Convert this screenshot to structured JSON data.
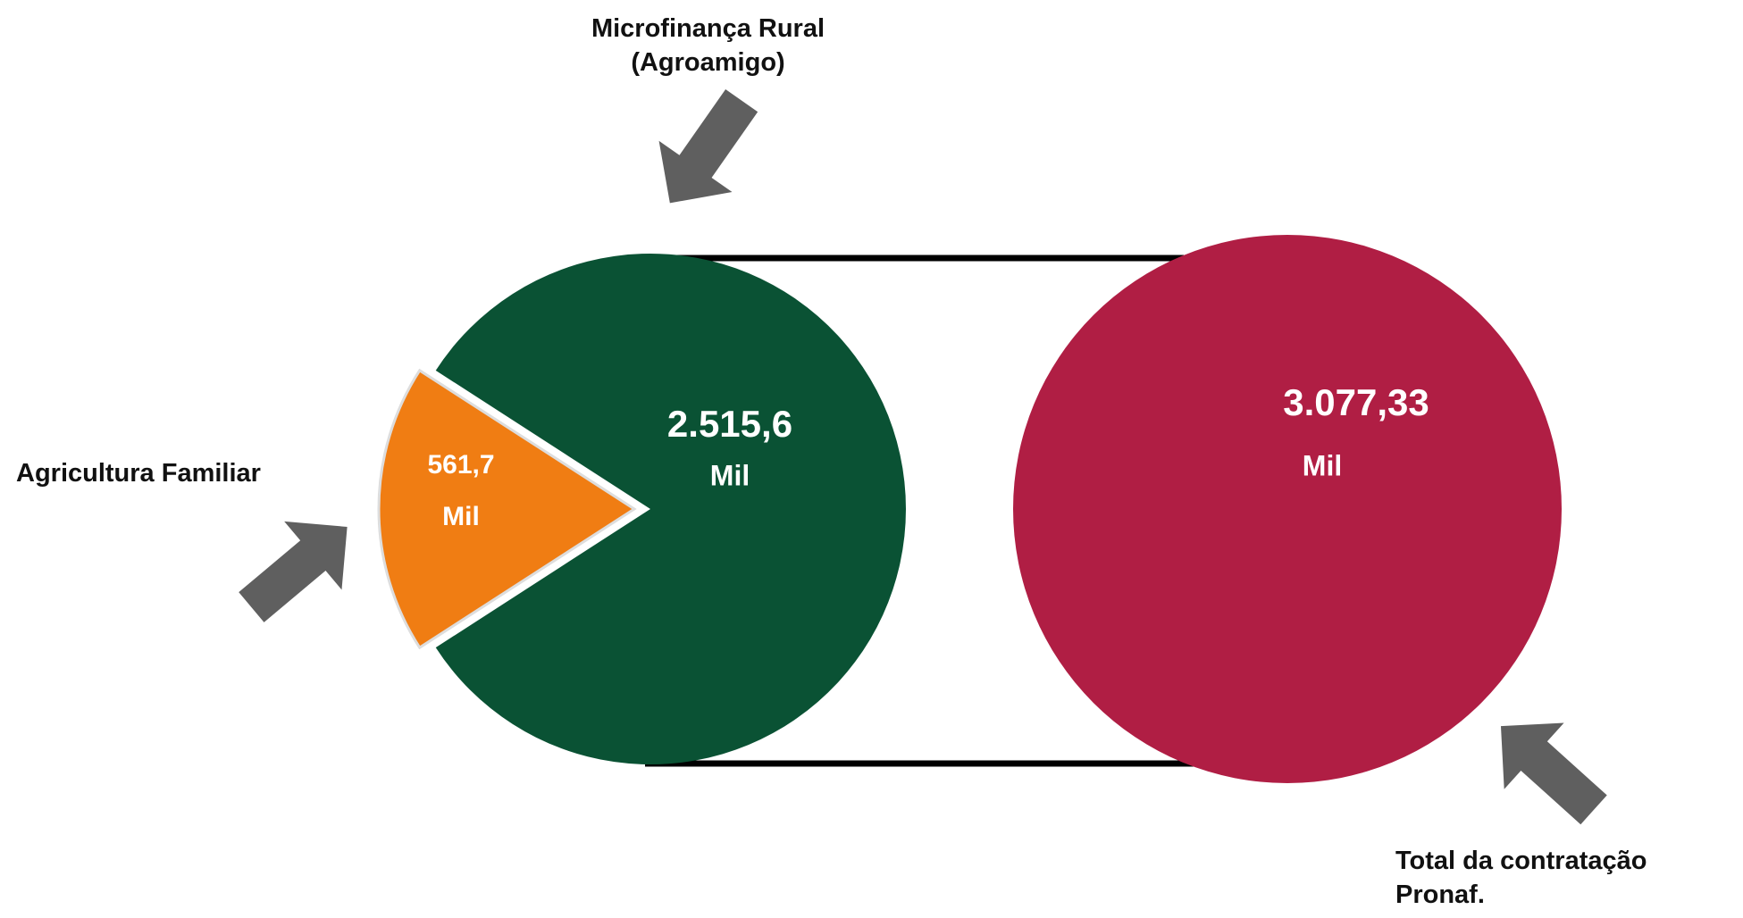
{
  "chart_data": {
    "type": "pie",
    "categories": [
      "Agricultura Familiar",
      "Microfinança Rural (Agroamigo)"
    ],
    "values": [
      561.7,
      2515.6
    ],
    "value_labels": [
      "561,7",
      "2.515,6"
    ],
    "colors": [
      "#f07d13",
      "#0a5234"
    ],
    "unit": "Mil",
    "total": {
      "label": "Total da contratação Pronaf.",
      "value": 3077.33,
      "value_label": "3.077,33",
      "color": "#b01e44"
    }
  }
}
